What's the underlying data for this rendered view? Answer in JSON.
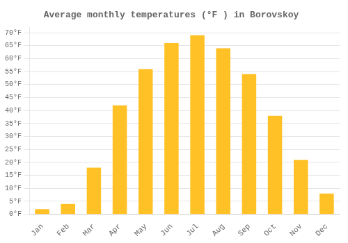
{
  "chart_data": {
    "type": "bar",
    "title": "Average monthly temperatures (°F ) in Borovskoy",
    "categories": [
      "Jan",
      "Feb",
      "Mar",
      "Apr",
      "May",
      "Jun",
      "Jul",
      "Aug",
      "Sep",
      "Oct",
      "Nov",
      "Dec"
    ],
    "values": [
      2,
      4,
      18,
      42,
      56,
      66,
      69,
      64,
      54,
      38,
      21,
      8
    ],
    "color": "#FFC125",
    "ylim": [
      0,
      72
    ],
    "yticks": [
      {
        "value": 0,
        "label": "0°F"
      },
      {
        "value": 5,
        "label": "5°F"
      },
      {
        "value": 10,
        "label": "10°F"
      },
      {
        "value": 15,
        "label": "15°F"
      },
      {
        "value": 20,
        "label": "20°F"
      },
      {
        "value": 25,
        "label": "25°F"
      },
      {
        "value": 30,
        "label": "30°F"
      },
      {
        "value": 35,
        "label": "35°F"
      },
      {
        "value": 40,
        "label": "40°F"
      },
      {
        "value": 45,
        "label": "45°F"
      },
      {
        "value": 50,
        "label": "50°F"
      },
      {
        "value": 55,
        "label": "55°F"
      },
      {
        "value": 60,
        "label": "60°F"
      },
      {
        "value": 65,
        "label": "65°F"
      },
      {
        "value": 70,
        "label": "70°F"
      }
    ],
    "grid": true
  }
}
